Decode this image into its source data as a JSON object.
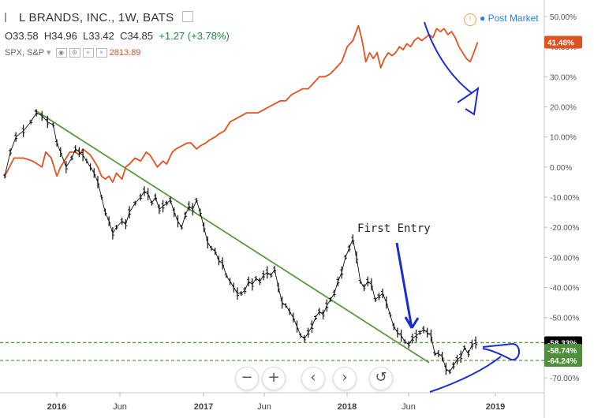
{
  "header": {
    "symbol": "L BRANDS, INC., 1W, BATS",
    "open_label": "O",
    "open": "33.58",
    "high_label": "H",
    "high": "34.96",
    "low_label": "L",
    "low": "33.42",
    "close_label": "C",
    "close": "34.85",
    "change": "+1.27 (+3.78%)",
    "compare_symbol": "SPX, S&P",
    "compare_value": "2813.89"
  },
  "post_market": "Post Market",
  "annotation_text": "First Entry",
  "zoom_controls": {
    "zoom_out": "−",
    "zoom_in": "+",
    "back": "‹",
    "forward": "›",
    "reset": "↺"
  },
  "chart_data": {
    "type": "line",
    "x_labels": [
      "2016",
      "Jun",
      "2017",
      "Jun",
      "2018",
      "Jun",
      "2019"
    ],
    "y_ticks": [
      "50.00%",
      "40.00%",
      "30.00%",
      "20.00%",
      "10.00%",
      "0.00%",
      "-10.00%",
      "-20.00%",
      "-30.00%",
      "-40.00%",
      "-50.00%",
      "-60.00%",
      "-70.00%"
    ],
    "y_tick_values": [
      50,
      40,
      30,
      20,
      10,
      0,
      -10,
      -20,
      -30,
      -40,
      -50,
      -60,
      -70
    ],
    "ylim": [
      -76,
      55
    ],
    "price_tags": [
      {
        "label": "41.48%",
        "value": 41.48,
        "bg": "#e0521f",
        "fg": "#ffffff"
      },
      {
        "label": "-58.33%",
        "value": -58.33,
        "bg": "#000000",
        "fg": "#ffffff"
      },
      {
        "label": "-58.74%",
        "value": -58.74,
        "bg": "#4d8f3a",
        "fg": "#ffffff"
      },
      {
        "label": "-64.24%",
        "value": -64.24,
        "bg": "#4d8f3a",
        "fg": "#ffffff"
      }
    ],
    "horizontal_levels": [
      -58.33,
      -64.24
    ],
    "series": [
      {
        "name": "SPX, S&P",
        "color": "#e0521f",
        "points": [
          [
            0,
            -3
          ],
          [
            5,
            3
          ],
          [
            10,
            3
          ],
          [
            15,
            2
          ],
          [
            20,
            0
          ],
          [
            22,
            5
          ],
          [
            25,
            3
          ],
          [
            28,
            -3
          ],
          [
            30,
            0
          ],
          [
            33,
            3
          ],
          [
            35,
            5
          ],
          [
            38,
            5
          ],
          [
            40,
            4
          ],
          [
            42,
            6
          ],
          [
            44,
            5
          ],
          [
            46,
            4
          ],
          [
            48,
            2
          ],
          [
            50,
            0
          ],
          [
            52,
            -3
          ],
          [
            54,
            -4
          ],
          [
            56,
            -3
          ],
          [
            58,
            -5
          ],
          [
            60,
            -2
          ],
          [
            63,
            -4
          ],
          [
            65,
            0
          ],
          [
            67,
            1
          ],
          [
            70,
            3
          ],
          [
            73,
            2
          ],
          [
            76,
            5
          ],
          [
            78,
            4
          ],
          [
            80,
            2
          ],
          [
            82,
            0
          ],
          [
            85,
            2
          ],
          [
            87,
            1
          ],
          [
            90,
            5
          ],
          [
            92,
            6
          ],
          [
            95,
            7
          ],
          [
            98,
            8
          ],
          [
            100,
            8
          ],
          [
            103,
            6
          ],
          [
            105,
            7
          ],
          [
            108,
            8
          ],
          [
            110,
            9
          ],
          [
            113,
            10
          ],
          [
            115,
            11
          ],
          [
            118,
            12
          ],
          [
            121,
            15
          ],
          [
            124,
            16
          ],
          [
            127,
            17
          ],
          [
            130,
            18
          ],
          [
            133,
            18
          ],
          [
            136,
            18
          ],
          [
            139,
            19
          ],
          [
            142,
            20
          ],
          [
            145,
            21
          ],
          [
            148,
            22
          ],
          [
            151,
            22
          ],
          [
            154,
            24
          ],
          [
            157,
            25
          ],
          [
            160,
            26
          ],
          [
            163,
            26
          ],
          [
            166,
            28
          ],
          [
            169,
            30
          ],
          [
            172,
            30
          ],
          [
            175,
            31
          ],
          [
            178,
            33
          ],
          [
            181,
            35
          ],
          [
            184,
            40
          ],
          [
            187,
            42
          ],
          [
            190,
            47
          ],
          [
            192,
            42
          ],
          [
            194,
            35
          ],
          [
            196,
            38
          ],
          [
            198,
            36
          ],
          [
            200,
            38
          ],
          [
            202,
            33
          ],
          [
            204,
            36
          ],
          [
            206,
            38
          ],
          [
            208,
            37
          ],
          [
            210,
            38
          ],
          [
            212,
            40
          ],
          [
            214,
            39
          ],
          [
            216,
            41
          ],
          [
            218,
            40
          ],
          [
            220,
            42
          ],
          [
            222,
            43
          ],
          [
            224,
            42
          ],
          [
            226,
            43
          ],
          [
            228,
            44
          ],
          [
            230,
            43
          ],
          [
            232,
            46
          ],
          [
            234,
            45
          ],
          [
            236,
            46
          ],
          [
            238,
            44
          ],
          [
            240,
            45
          ],
          [
            242,
            43
          ],
          [
            244,
            40
          ],
          [
            246,
            38
          ],
          [
            248,
            36
          ],
          [
            250,
            35
          ],
          [
            252,
            38
          ],
          [
            254,
            41.48
          ]
        ]
      },
      {
        "name": "L BRANDS, INC.",
        "color": "#111111",
        "points": [
          [
            0,
            -3
          ],
          [
            3,
            5
          ],
          [
            6,
            10
          ],
          [
            10,
            12
          ],
          [
            14,
            15
          ],
          [
            17,
            18
          ],
          [
            20,
            17
          ],
          [
            23,
            15
          ],
          [
            26,
            14
          ],
          [
            28,
            8
          ],
          [
            30,
            5
          ],
          [
            33,
            0
          ],
          [
            36,
            3
          ],
          [
            38,
            6
          ],
          [
            40,
            5
          ],
          [
            42,
            4
          ],
          [
            44,
            2
          ],
          [
            46,
            0
          ],
          [
            48,
            -2
          ],
          [
            50,
            -5
          ],
          [
            52,
            -10
          ],
          [
            54,
            -15
          ],
          [
            56,
            -18
          ],
          [
            58,
            -22
          ],
          [
            60,
            -20
          ],
          [
            63,
            -18
          ],
          [
            65,
            -19
          ],
          [
            67,
            -15
          ],
          [
            70,
            -12
          ],
          [
            73,
            -10
          ],
          [
            75,
            -8
          ],
          [
            77,
            -9
          ],
          [
            79,
            -12
          ],
          [
            81,
            -10
          ],
          [
            83,
            -14
          ],
          [
            85,
            -13
          ],
          [
            87,
            -12
          ],
          [
            89,
            -11
          ],
          [
            91,
            -15
          ],
          [
            93,
            -18
          ],
          [
            95,
            -20
          ],
          [
            97,
            -16
          ],
          [
            99,
            -13
          ],
          [
            101,
            -14
          ],
          [
            103,
            -11
          ],
          [
            105,
            -15
          ],
          [
            107,
            -20
          ],
          [
            109,
            -25
          ],
          [
            111,
            -27
          ],
          [
            113,
            -28
          ],
          [
            115,
            -31
          ],
          [
            117,
            -32
          ],
          [
            119,
            -36
          ],
          [
            121,
            -38
          ],
          [
            123,
            -40
          ],
          [
            125,
            -42
          ],
          [
            127,
            -42
          ],
          [
            129,
            -41
          ],
          [
            131,
            -38
          ],
          [
            133,
            -39
          ],
          [
            135,
            -37
          ],
          [
            137,
            -38
          ],
          [
            139,
            -36
          ],
          [
            141,
            -35
          ],
          [
            143,
            -36
          ],
          [
            145,
            -34
          ],
          [
            147,
            -40
          ],
          [
            149,
            -45
          ],
          [
            151,
            -46
          ],
          [
            153,
            -48
          ],
          [
            155,
            -50
          ],
          [
            157,
            -53
          ],
          [
            159,
            -56
          ],
          [
            161,
            -57
          ],
          [
            163,
            -55
          ],
          [
            165,
            -53
          ],
          [
            167,
            -50
          ],
          [
            169,
            -48
          ],
          [
            171,
            -49
          ],
          [
            173,
            -46
          ],
          [
            175,
            -44
          ],
          [
            177,
            -42
          ],
          [
            179,
            -38
          ],
          [
            181,
            -35
          ],
          [
            183,
            -30
          ],
          [
            185,
            -27
          ],
          [
            187,
            -24
          ],
          [
            189,
            -30
          ],
          [
            191,
            -38
          ],
          [
            193,
            -40
          ],
          [
            195,
            -38
          ],
          [
            197,
            -39
          ],
          [
            199,
            -44
          ],
          [
            201,
            -43
          ],
          [
            203,
            -42
          ],
          [
            205,
            -45
          ],
          [
            207,
            -49
          ],
          [
            209,
            -53
          ],
          [
            211,
            -55
          ],
          [
            213,
            -56
          ],
          [
            215,
            -58
          ],
          [
            217,
            -59
          ],
          [
            219,
            -57
          ],
          [
            221,
            -56
          ],
          [
            223,
            -55
          ],
          [
            225,
            -54
          ],
          [
            227,
            -55
          ],
          [
            229,
            -56
          ],
          [
            231,
            -62
          ],
          [
            233,
            -62
          ],
          [
            235,
            -63
          ],
          [
            237,
            -67
          ],
          [
            239,
            -68
          ],
          [
            241,
            -66
          ],
          [
            243,
            -64
          ],
          [
            245,
            -63
          ],
          [
            247,
            -60
          ],
          [
            249,
            -62
          ],
          [
            251,
            -59
          ],
          [
            253,
            -58.33
          ]
        ]
      }
    ],
    "trendline": {
      "color": "#5a9a3c",
      "from": [
        16,
        19
      ],
      "to": [
        228,
        -65
      ]
    }
  }
}
